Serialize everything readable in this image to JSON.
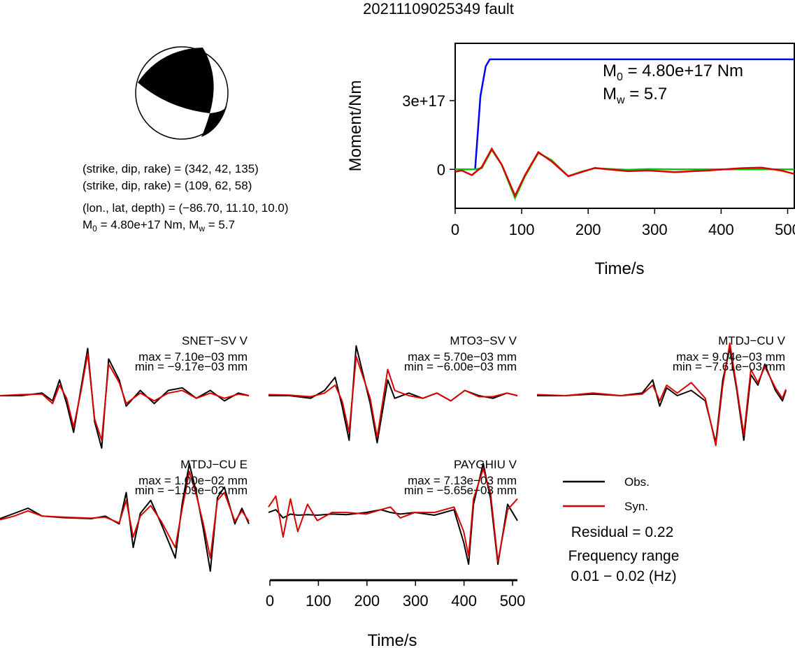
{
  "title": "20211109025349 fault",
  "mechanism": {
    "line1": "(strike, dip, rake) = (342, 42, 135)",
    "line2": "(strike, dip, rake) = (109, 62, 58)",
    "line3": "(lon., lat, depth) = (−86.70, 11.10, 10.0)",
    "line4_main": "M",
    "line4_sub0": "0",
    "line4_mid": " = 4.80e+17 Nm, M",
    "line4_subw": "w",
    "line4_end": " = 5.7"
  },
  "chart_data": [
    {
      "type": "line",
      "title": "",
      "xlabel": "Time/s",
      "ylabel": "Moment/Nm",
      "xlim": [
        0,
        510
      ],
      "ylim": [
        -1.7e+17,
        5.5e+17
      ],
      "xticks": [
        0,
        100,
        200,
        300,
        400,
        500
      ],
      "yticks": [
        0,
        3e+17
      ],
      "ytick_labels": [
        "0",
        "3e+17"
      ],
      "annotation": {
        "m0_main": "M",
        "m0_sub": "0",
        "m0_value": " = 4.80e+17 Nm",
        "mw_main": "M",
        "mw_sub": "w",
        "mw_value": " = 5.7"
      },
      "series": [
        {
          "color": "#0000ff",
          "x": [
            0,
            30,
            38,
            46,
            52,
            510
          ],
          "y": [
            0,
            0,
            3.2e+17,
            4.5e+17,
            4.8e+17,
            4.8e+17
          ]
        },
        {
          "color": "#00cc00",
          "x": [
            0,
            30,
            40,
            55,
            70,
            90,
            105,
            125,
            145,
            170,
            190,
            210,
            230,
            260,
            290,
            330,
            380,
            430,
            480,
            510
          ],
          "y": [
            0,
            0,
            5000000000000000.0,
            8.5e+16,
            2e+16,
            -1.25e+17,
            -3e+16,
            7.2e+16,
            4e+16,
            -3e+16,
            -1e+16,
            5000000000000000.0,
            2000000000000000.0,
            -2000000000000000.0,
            1000000000000000.0,
            0,
            0,
            0,
            0,
            0
          ]
        },
        {
          "color": "#dd0000",
          "x": [
            0,
            10,
            25,
            40,
            55,
            70,
            90,
            105,
            125,
            145,
            170,
            190,
            210,
            230,
            260,
            290,
            330,
            380,
            430,
            460,
            490,
            510
          ],
          "y": [
            -1e+16,
            -5000000000000000.0,
            -2.5e+16,
            1e+16,
            9e+16,
            2e+16,
            -1.15e+17,
            -2.5e+16,
            7.5e+16,
            3.5e+16,
            -3e+16,
            -1.2e+16,
            6000000000000000.0,
            0,
            -8000000000000000.0,
            -5000000000000000.0,
            -1.2e+16,
            -5000000000000000.0,
            5000000000000000.0,
            8000000000000000.0,
            -5000000000000000.0,
            -2e+16
          ]
        }
      ]
    },
    {
      "type": "line",
      "title": "",
      "xlabel": "Time/s",
      "xlim": [
        0,
        510
      ],
      "xticks": [
        0,
        100,
        200,
        300,
        400,
        500
      ],
      "legend": {
        "position": "right",
        "entries": [
          {
            "label": "Obs.",
            "color": "#000000"
          },
          {
            "label": "Syn.",
            "color": "#dd0000"
          }
        ]
      },
      "residual": "Residual = 0.22",
      "frequency_label": "Frequency range",
      "frequency_value": "0.01 − 0.02 (Hz)",
      "stations": [
        {
          "name": "SNET−SV V",
          "max": "max = 7.10e−03 mm",
          "min": "min = −9.17e−03 mm",
          "x": [
            0,
            30,
            60,
            75,
            85,
            95,
            105,
            115,
            125,
            135,
            145,
            155,
            170,
            180,
            200,
            220,
            240,
            260,
            280,
            300,
            320,
            340,
            355
          ],
          "obs": [
            0,
            0,
            0.05,
            -0.1,
            0.3,
            -0.15,
            -0.7,
            0.1,
            0.9,
            -0.5,
            -1.0,
            0.7,
            0.3,
            -0.2,
            0.1,
            -0.15,
            0.1,
            0.15,
            -0.05,
            0.1,
            -0.1,
            0.05,
            0
          ],
          "syn": [
            0,
            0.02,
            0.03,
            -0.15,
            0.2,
            -0.05,
            -0.6,
            0.05,
            0.8,
            -0.45,
            -0.85,
            0.6,
            0.25,
            -0.15,
            0.05,
            -0.1,
            0.05,
            0.1,
            -0.05,
            0.05,
            -0.05,
            0.03,
            0
          ]
        },
        {
          "name": "MTO3−SV V",
          "max": "max = 5.70e−03 mm",
          "min": "min = −6.00e−03 mm",
          "x": [
            0,
            30,
            60,
            80,
            95,
            105,
            115,
            125,
            135,
            145,
            155,
            170,
            180,
            200,
            220,
            240,
            260,
            280,
            300,
            320,
            340,
            355
          ],
          "obs": [
            0,
            0,
            -0.05,
            0.1,
            0.35,
            -0.2,
            -0.85,
            0.95,
            0.4,
            -0.15,
            -0.9,
            0.3,
            -0.05,
            0.05,
            -0.05,
            0.05,
            -0.1,
            0.1,
            0,
            -0.05,
            0.05,
            0
          ],
          "syn": [
            0.02,
            0.01,
            -0.02,
            0.05,
            0.2,
            -0.1,
            -0.7,
            0.75,
            0.35,
            -0.05,
            -0.8,
            0.5,
            0.1,
            0,
            -0.05,
            0.05,
            -0.1,
            0.1,
            -0.02,
            -0.02,
            0.05,
            0
          ]
        },
        {
          "name": "MTDJ−CU V",
          "max": "max = 9.04e−03 mm",
          "min": "min = −7.61e−03 mm",
          "x": [
            0,
            40,
            80,
            120,
            150,
            165,
            175,
            185,
            200,
            220,
            240,
            255,
            265,
            275,
            285,
            295,
            305,
            315,
            325,
            340,
            350,
            355
          ],
          "obs": [
            0,
            0,
            0.03,
            0,
            0.05,
            0.3,
            -0.2,
            0.15,
            0,
            0.1,
            -0.1,
            -0.9,
            0.3,
            0.9,
            0.1,
            -0.85,
            0.4,
            0.2,
            0.6,
            0.1,
            -0.1,
            0.1
          ],
          "syn": [
            0.02,
            0,
            0.05,
            0,
            0.03,
            0.2,
            -0.1,
            0.2,
            0.05,
            0.25,
            -0.05,
            -0.95,
            0.2,
            1.0,
            0.15,
            -0.75,
            0.5,
            0.25,
            0.55,
            0.15,
            -0.05,
            0.12
          ]
        },
        {
          "name": "MTDJ−CU E",
          "max": "max = 1.00e−02 mm",
          "min": "min = −1.09e−02 mm",
          "x": [
            0,
            20,
            40,
            60,
            90,
            130,
            150,
            170,
            180,
            190,
            200,
            215,
            230,
            250,
            260,
            270,
            280,
            290,
            300,
            310,
            320,
            335,
            345,
            355
          ],
          "obs": [
            0,
            0.1,
            0.2,
            0.05,
            0.02,
            0,
            0.05,
            -0.1,
            0.5,
            -0.55,
            0.1,
            0.35,
            -0.1,
            -0.75,
            0.3,
            1.05,
            0.5,
            -0.2,
            -1.0,
            0.4,
            0.6,
            -0.1,
            0.2,
            -0.1
          ],
          "syn": [
            -0.02,
            0.05,
            0.15,
            0.05,
            0.03,
            0.01,
            0.03,
            -0.08,
            0.35,
            -0.35,
            0.05,
            0.25,
            -0.05,
            -0.55,
            0.2,
            0.9,
            0.45,
            -0.1,
            -0.75,
            0.35,
            0.5,
            -0.05,
            0.15,
            -0.05
          ],
          "xtick_visible": false
        },
        {
          "name": "PAYGHIU V",
          "max": "max = 7.13e−03 mm",
          "min": "min = −5.65e−03 mm",
          "x": [
            0,
            15,
            30,
            45,
            60,
            80,
            100,
            130,
            160,
            200,
            230,
            250,
            270,
            300,
            340,
            380,
            400,
            410,
            420,
            440,
            455,
            470,
            490,
            510
          ],
          "obs": [
            0.05,
            0.1,
            -0.05,
            0.02,
            0,
            0.01,
            0,
            0.02,
            0.01,
            0.05,
            0.1,
            0.05,
            0.02,
            0.05,
            0,
            0.1,
            -0.5,
            -0.9,
            0.2,
            0.95,
            0.3,
            -0.9,
            0.2,
            -0.1
          ],
          "syn": [
            0.15,
            0.35,
            -0.4,
            0.3,
            -0.3,
            0.2,
            -0.1,
            0.05,
            0.05,
            0.02,
            0.1,
            0.15,
            -0.05,
            0.05,
            0.05,
            0.15,
            -0.3,
            -0.75,
            0.3,
            0.85,
            0.4,
            -0.85,
            0.1,
            0.3
          ]
        }
      ]
    }
  ]
}
